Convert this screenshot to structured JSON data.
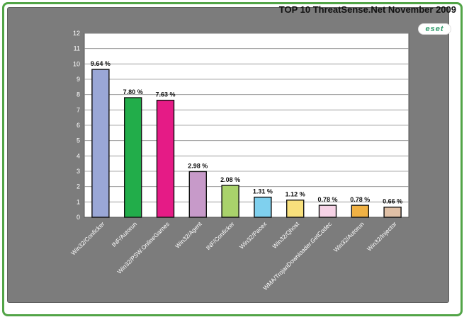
{
  "brand": {
    "logo_text": "eset"
  },
  "chart_data": {
    "type": "bar",
    "title": "TOP 10 ThreatSense.Net November 2009",
    "xlabel": "",
    "ylabel": "",
    "ylim": [
      0,
      12
    ],
    "yticks": [
      0,
      1,
      2,
      3,
      4,
      5,
      6,
      7,
      8,
      9,
      10,
      11,
      12
    ],
    "grid": true,
    "categories": [
      "Win32/Conficker",
      "INF/Autorun",
      "Win32/PSW.OnlineGames",
      "Win32/Agent",
      "INF/Conficker",
      "Win32/Pacex",
      "Win32/Qhost",
      "WMA/TrojanDownloader.GetCodec",
      "Win32/Autorun",
      "Win32/Injector"
    ],
    "values": [
      9.64,
      7.8,
      7.63,
      2.98,
      2.08,
      1.31,
      1.12,
      0.78,
      0.78,
      0.66
    ],
    "data_labels": [
      "9.64 %",
      "7.80 %",
      "7.63 %",
      "2.98 %",
      "2.08 %",
      "1.31 %",
      "1.12 %",
      "0.78 %",
      "0.78 %",
      "0.66 %"
    ],
    "colors": [
      "#9aa7d6",
      "#22ad4a",
      "#e51b86",
      "#c79ac9",
      "#a9d26b",
      "#7fd0ee",
      "#f8e07c",
      "#f6d3e6",
      "#f1b244",
      "#e0c0a6"
    ]
  }
}
